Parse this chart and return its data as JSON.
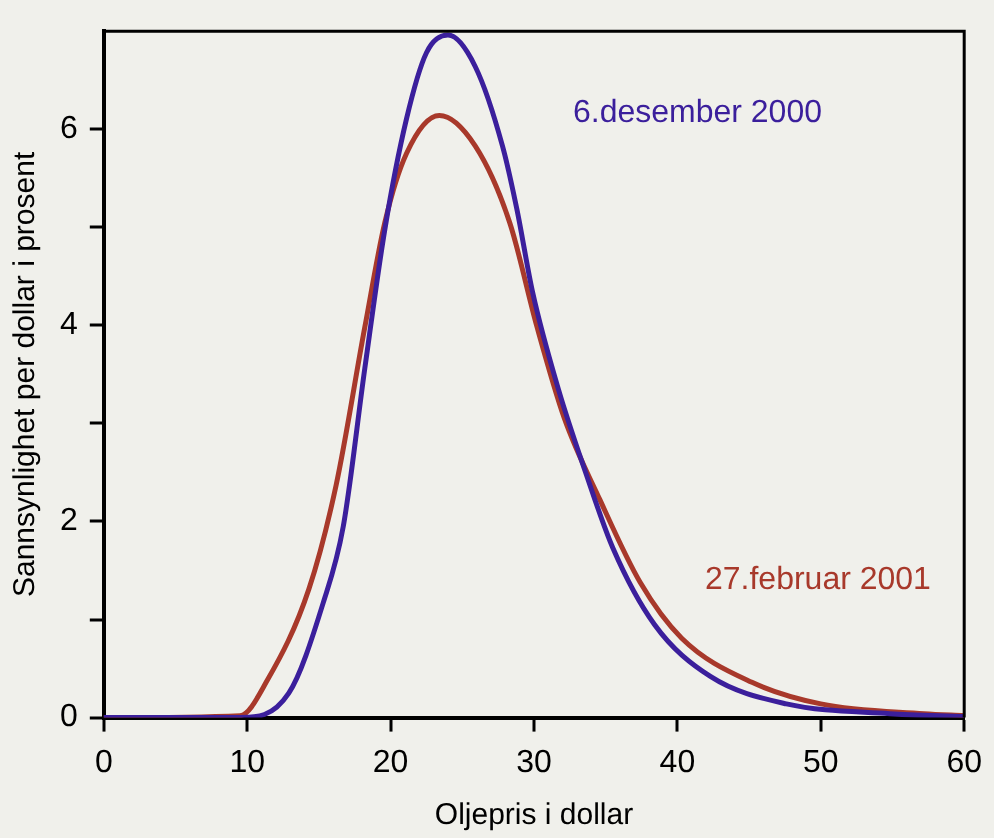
{
  "chart_data": {
    "type": "line",
    "xlabel": "Oljepris i dollar",
    "ylabel": "Sannsynlighet per dollar i prosent",
    "xlim": [
      0,
      60
    ],
    "xticks": [
      0,
      10,
      20,
      30,
      40,
      50,
      60
    ],
    "ylim": [
      0,
      7
    ],
    "yticks": [
      0,
      {
        "value": 1,
        "label": null
      },
      2,
      {
        "value": 3,
        "label": null
      },
      4,
      {
        "value": 5,
        "label": null
      },
      6
    ],
    "grid": false,
    "legend": false,
    "marker": "none",
    "line_style": "solid",
    "series": [
      {
        "name": "6.desember 2000",
        "color": "#3b1f9c",
        "x": [
          0,
          9.5,
          12.9,
          15.3,
          16.7,
          18.2,
          19.6,
          21.1,
          22.5,
          24.0,
          25.9,
          27.8,
          28.8,
          29.9,
          31.7,
          33.6,
          35.5,
          38.4,
          42.3,
          47.6,
          54.8,
          60
        ],
        "values": [
          0,
          0,
          0.25,
          1.17,
          1.95,
          3.56,
          4.98,
          6.1,
          6.78,
          6.96,
          6.64,
          5.83,
          5.19,
          4.34,
          3.35,
          2.5,
          1.73,
          0.95,
          0.42,
          0.14,
          0.04,
          0.01
        ]
      },
      {
        "name": "27.februar 2001",
        "color": "#a8392b",
        "x": [
          0,
          9.5,
          11.4,
          14.3,
          16.2,
          18.2,
          19.6,
          21.1,
          23.4,
          25.9,
          28.3,
          30.2,
          32.1,
          34.6,
          37.4,
          40.3,
          45.2,
          50.0,
          57.2,
          60
        ],
        "values": [
          0,
          0.02,
          0.38,
          1.31,
          2.37,
          3.98,
          5.05,
          5.75,
          6.14,
          5.83,
          5.05,
          3.99,
          3.06,
          2.22,
          1.38,
          0.81,
          0.36,
          0.14,
          0.04,
          0.02
        ]
      }
    ]
  }
}
